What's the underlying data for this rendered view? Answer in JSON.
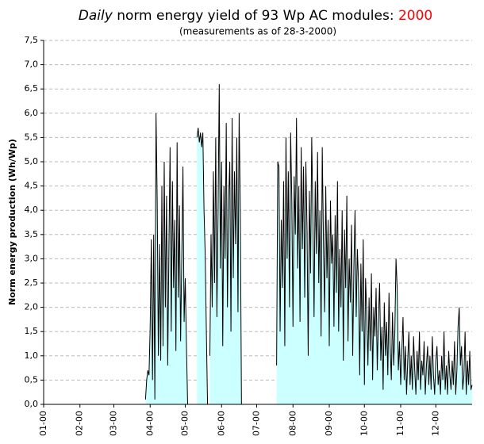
{
  "chart_data": {
    "type": "area",
    "title_prefix": "Daily",
    "title": "norm energy yield of 93 Wp AC modules:",
    "title_year": "2000",
    "subtitle": "(measurements as of 28-3-2000)",
    "ylabel": "Norm energy production (Wh/Wp)",
    "fill_color": "#ccffff",
    "line_color": "#000000",
    "year_color": "#ff0000",
    "grid": true,
    "xlim": [
      0,
      366
    ],
    "ylim": [
      0,
      7.5
    ],
    "xticks": [
      {
        "value": 0,
        "label": "01-00"
      },
      {
        "value": 31,
        "label": "02-00"
      },
      {
        "value": 60,
        "label": "03-00"
      },
      {
        "value": 91,
        "label": "04-00"
      },
      {
        "value": 121,
        "label": "05-00"
      },
      {
        "value": 152,
        "label": "06-00"
      },
      {
        "value": 182,
        "label": "07-00"
      },
      {
        "value": 213,
        "label": "08-00"
      },
      {
        "value": 244,
        "label": "09-00"
      },
      {
        "value": 274,
        "label": "10-00"
      },
      {
        "value": 305,
        "label": "11-00"
      },
      {
        "value": 335,
        "label": "12-00"
      }
    ],
    "yticks": [
      {
        "value": 0,
        "label": "0,0"
      },
      {
        "value": 0.5,
        "label": "0,5"
      },
      {
        "value": 1,
        "label": "1,0"
      },
      {
        "value": 1.5,
        "label": "1,5"
      },
      {
        "value": 2,
        "label": "2,0"
      },
      {
        "value": 2.5,
        "label": "2,5"
      },
      {
        "value": 3,
        "label": "3,0"
      },
      {
        "value": 3.5,
        "label": "3,5"
      },
      {
        "value": 4,
        "label": "4,0"
      },
      {
        "value": 4.5,
        "label": "4,5"
      },
      {
        "value": 5,
        "label": "5,0"
      },
      {
        "value": 5.5,
        "label": "5,5"
      },
      {
        "value": 6,
        "label": "6,0"
      },
      {
        "value": 6.5,
        "label": "6,5"
      },
      {
        "value": 7,
        "label": "7,0"
      },
      {
        "value": 7.5,
        "label": "7,5"
      }
    ],
    "x": [
      87,
      88,
      89,
      90,
      91,
      92,
      93,
      94,
      95,
      96,
      97,
      98,
      99,
      100,
      101,
      102,
      103,
      104,
      105,
      106,
      107,
      108,
      109,
      110,
      111,
      112,
      113,
      114,
      115,
      116,
      117,
      118,
      119,
      120,
      121,
      122,
      123,
      127,
      131,
      132,
      133,
      134,
      135,
      136,
      137,
      138,
      139,
      140,
      141,
      142,
      143,
      144,
      145,
      146,
      147,
      148,
      149,
      150,
      151,
      152,
      153,
      154,
      155,
      156,
      157,
      158,
      159,
      160,
      161,
      162,
      163,
      164,
      165,
      166,
      167,
      168,
      169,
      185,
      199,
      200,
      201,
      202,
      203,
      204,
      205,
      206,
      207,
      208,
      209,
      210,
      211,
      212,
      213,
      214,
      215,
      216,
      217,
      218,
      219,
      220,
      221,
      222,
      223,
      224,
      225,
      226,
      227,
      228,
      229,
      230,
      231,
      232,
      233,
      234,
      235,
      236,
      237,
      238,
      239,
      240,
      241,
      242,
      243,
      244,
      245,
      246,
      247,
      248,
      249,
      250,
      251,
      252,
      253,
      254,
      255,
      256,
      257,
      258,
      259,
      260,
      261,
      262,
      263,
      264,
      265,
      266,
      267,
      268,
      269,
      270,
      271,
      272,
      273,
      274,
      275,
      276,
      277,
      278,
      279,
      280,
      281,
      282,
      283,
      284,
      285,
      286,
      287,
      288,
      289,
      290,
      291,
      292,
      293,
      294,
      295,
      296,
      297,
      298,
      299,
      300,
      301,
      302,
      303,
      304,
      305,
      306,
      307,
      308,
      309,
      310,
      311,
      312,
      313,
      314,
      315,
      316,
      317,
      318,
      319,
      320,
      321,
      322,
      323,
      324,
      325,
      326,
      327,
      328,
      329,
      330,
      331,
      332,
      333,
      334,
      335,
      336,
      337,
      338,
      339,
      340,
      341,
      342,
      343,
      344,
      345,
      346,
      347,
      348,
      349,
      350,
      351,
      352,
      353,
      354,
      355,
      356,
      357,
      358,
      359,
      360,
      361,
      362,
      363,
      364,
      365,
      366
    ],
    "values": [
      0.1,
      0.5,
      0.7,
      0.6,
      1.6,
      3.4,
      0.5,
      3.5,
      0.1,
      6.0,
      4.2,
      1.0,
      3.3,
      0.9,
      4.5,
      1.2,
      5.0,
      2.0,
      4.3,
      0.8,
      3.2,
      5.3,
      1.5,
      4.6,
      2.4,
      3.8,
      1.1,
      5.4,
      2.2,
      4.1,
      1.3,
      3.0,
      4.9,
      1.7,
      2.6,
      1.2,
      0.0,
      null,
      5.5,
      5.7,
      5.4,
      5.6,
      5.3,
      5.6,
      4.0,
      3.1,
      1.5,
      0.0,
      null,
      1.0,
      3.5,
      2.0,
      4.8,
      2.5,
      5.5,
      1.8,
      4.0,
      6.6,
      2.8,
      5.0,
      1.2,
      4.5,
      3.0,
      5.8,
      2.0,
      4.2,
      5.0,
      1.5,
      5.9,
      2.6,
      4.8,
      3.3,
      5.5,
      1.9,
      6.0,
      4.0,
      0.0,
      null,
      0.8,
      5.0,
      4.9,
      1.5,
      3.8,
      2.4,
      4.6,
      1.2,
      5.5,
      3.0,
      4.8,
      2.0,
      5.6,
      4.2,
      1.6,
      4.7,
      3.5,
      5.9,
      2.8,
      4.5,
      1.7,
      5.3,
      3.2,
      4.9,
      2.2,
      5.0,
      3.6,
      1.0,
      4.4,
      2.7,
      5.5,
      3.9,
      1.8,
      4.6,
      3.1,
      5.2,
      2.5,
      4.0,
      1.4,
      5.3,
      3.4,
      1.9,
      4.5,
      2.6,
      3.8,
      1.2,
      4.2,
      2.9,
      3.5,
      1.6,
      3.9,
      2.3,
      4.6,
      1.5,
      3.2,
      2.0,
      4.0,
      0.9,
      3.6,
      2.4,
      4.3,
      1.3,
      3.0,
      2.1,
      3.7,
      1.0,
      2.8,
      4.0,
      1.8,
      3.2,
      2.5,
      0.6,
      2.9,
      1.5,
      3.4,
      0.4,
      2.6,
      1.9,
      0.8,
      2.2,
      1.1,
      2.7,
      0.5,
      2.0,
      1.4,
      2.4,
      0.7,
      1.8,
      2.5,
      0.9,
      1.6,
      0.3,
      2.1,
      1.0,
      1.7,
      0.6,
      2.3,
      1.2,
      0.5,
      1.9,
      0.8,
      1.5,
      3.0,
      2.4,
      0.7,
      1.3,
      0.4,
      1.1,
      1.8,
      0.5,
      1.2,
      0.2,
      0.9,
      1.5,
      0.4,
      1.0,
      0.3,
      1.4,
      0.7,
      0.2,
      1.1,
      0.5,
      1.5,
      0.3,
      0.9,
      0.6,
      1.3,
      0.2,
      0.8,
      1.2,
      0.4,
      1.0,
      0.3,
      1.4,
      0.6,
      0.2,
      0.9,
      1.2,
      0.4,
      0.7,
      0.2,
      1.0,
      0.5,
      1.5,
      0.3,
      0.8,
      0.2,
      1.1,
      0.6,
      0.3,
      0.9,
      0.4,
      1.3,
      0.2,
      0.7,
      1.6,
      2.0,
      0.8,
      1.2,
      0.3,
      0.6,
      1.5,
      0.2,
      0.9,
      0.4,
      1.1,
      0.3,
      0.4
    ]
  }
}
